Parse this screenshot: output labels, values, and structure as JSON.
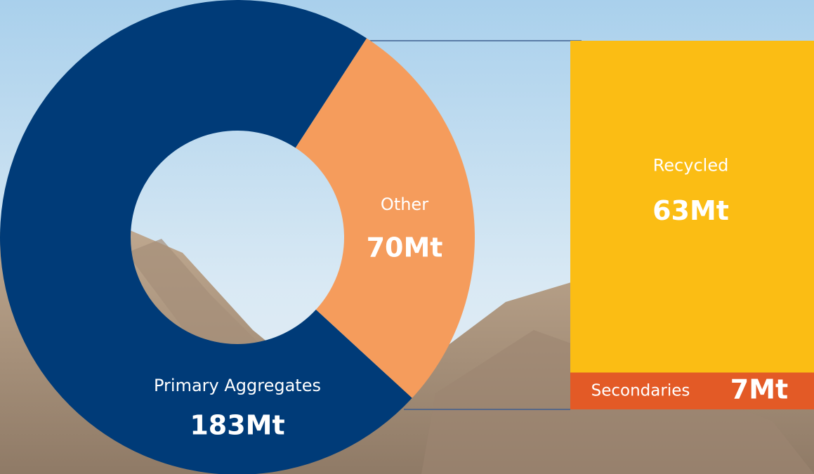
{
  "chart_data": [
    {
      "type": "donut",
      "categories": [
        "Primary Aggregates",
        "Other"
      ],
      "values": [
        183,
        70
      ],
      "value_labels": [
        "183Mt",
        "70Mt"
      ],
      "colors": [
        "#003b78",
        "#f59c5c"
      ]
    },
    {
      "type": "stacked-bar",
      "series": [
        {
          "name": "Secondaries",
          "color": "#e35a26",
          "values": [
            7
          ],
          "value_labels": [
            "7Mt"
          ]
        },
        {
          "name": "Recycled",
          "color": "#fbbd14",
          "values": [
            63
          ],
          "value_labels": [
            "63Mt"
          ]
        }
      ]
    }
  ]
}
